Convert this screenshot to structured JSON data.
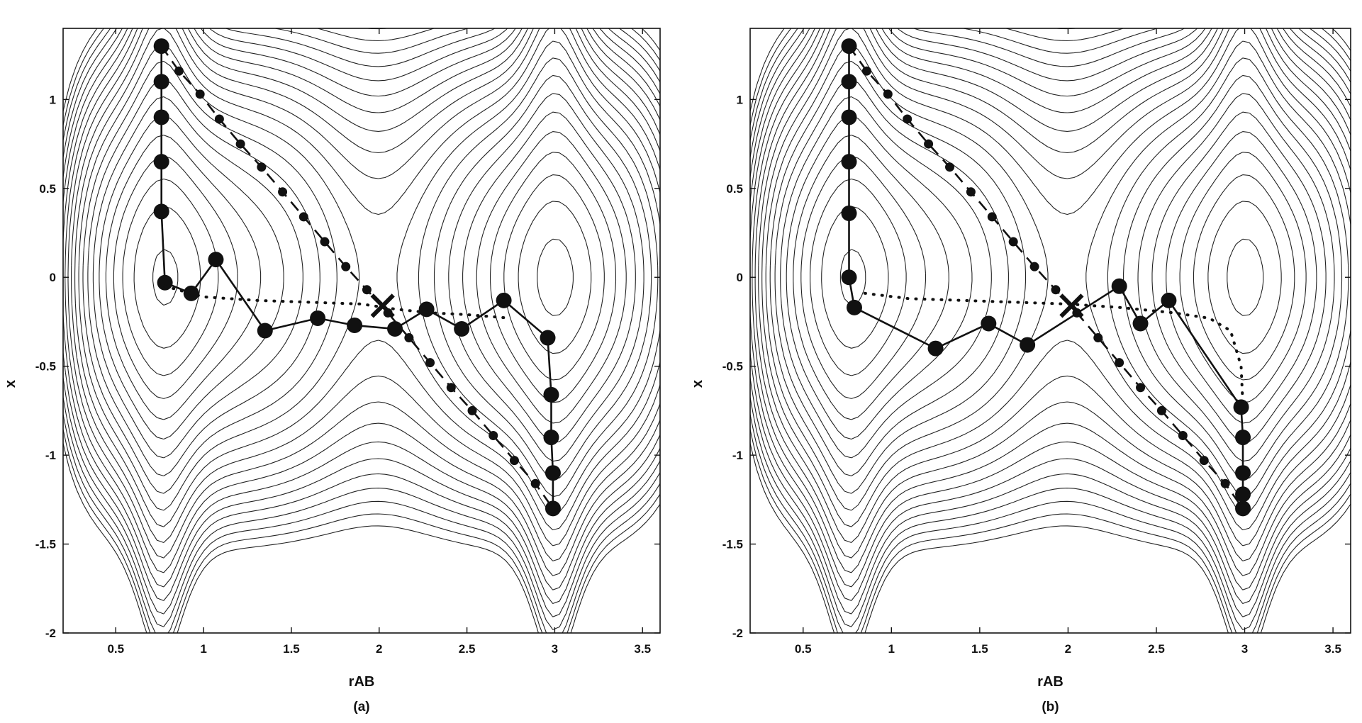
{
  "chart_data": [
    {
      "type": "line",
      "panel_label": "(a)",
      "xlabel": "rAB",
      "ylabel": "x",
      "xlim": [
        0.2,
        3.6
      ],
      "ylim": [
        -2,
        1.4
      ],
      "xticks": [
        0.5,
        1,
        1.5,
        2,
        2.5,
        3,
        3.5
      ],
      "xtick_labels": [
        "0.5",
        "1",
        "1.5",
        "2",
        "2.5",
        "3",
        "3.5"
      ],
      "yticks": [
        1,
        0.5,
        0,
        -0.5,
        -1,
        -1.5,
        -2
      ],
      "ytick_labels": [
        "1",
        "0.5",
        "0",
        "-0.5",
        "-1",
        "-1.5",
        "-2"
      ],
      "grid": false,
      "background": "contour plot of potential energy surface",
      "series": [
        {
          "style": "solid-large-markers",
          "x": [
            0.76,
            0.76,
            0.76,
            0.76,
            0.76,
            0.78,
            0.93,
            1.07,
            1.35,
            1.65,
            1.86,
            2.09,
            2.27,
            2.47,
            2.71,
            2.96,
            2.98,
            2.98,
            2.99,
            2.99
          ],
          "y": [
            1.3,
            1.1,
            0.9,
            0.65,
            0.37,
            -0.03,
            -0.09,
            0.1,
            -0.3,
            -0.23,
            -0.27,
            -0.29,
            -0.18,
            -0.29,
            -0.13,
            -0.34,
            -0.66,
            -0.9,
            -1.1,
            -1.3
          ]
        },
        {
          "style": "dashed-small-markers",
          "x": [
            0.76,
            0.86,
            0.98,
            1.09,
            1.21,
            1.33,
            1.45,
            1.57,
            1.69,
            1.81,
            1.93,
            2.05,
            2.17,
            2.29,
            2.41,
            2.53,
            2.65,
            2.77,
            2.89,
            2.99
          ],
          "y": [
            1.3,
            1.16,
            1.03,
            0.89,
            0.75,
            0.62,
            0.48,
            0.34,
            0.2,
            0.06,
            -0.07,
            -0.2,
            -0.34,
            -0.48,
            -0.62,
            -0.75,
            -0.89,
            -1.03,
            -1.16,
            -1.3
          ]
        },
        {
          "style": "dotted",
          "x": [
            0.78,
            1.0,
            1.3,
            1.6,
            1.9,
            2.1,
            2.3,
            2.5,
            2.75
          ],
          "y": [
            -0.05,
            -0.11,
            -0.13,
            -0.14,
            -0.15,
            -0.18,
            -0.2,
            -0.21,
            -0.23
          ]
        }
      ],
      "saddle_point": {
        "x": 2.02,
        "y": -0.16,
        "marker": "X"
      }
    },
    {
      "type": "line",
      "panel_label": "(b)",
      "xlabel": "rAB",
      "ylabel": "x",
      "xlim": [
        0.2,
        3.6
      ],
      "ylim": [
        -2,
        1.4
      ],
      "xticks": [
        0.5,
        1,
        1.5,
        2,
        2.5,
        3,
        3.5
      ],
      "xtick_labels": [
        "0.5",
        "1",
        "1.5",
        "2",
        "2.5",
        "3",
        "3.5"
      ],
      "yticks": [
        1,
        0.5,
        0,
        -0.5,
        -1,
        -1.5,
        -2
      ],
      "ytick_labels": [
        "1",
        "0.5",
        "0",
        "-0.5",
        "-1",
        "-1.5",
        "-2"
      ],
      "grid": false,
      "background": "contour plot of potential energy surface",
      "series": [
        {
          "style": "solid-large-markers",
          "x": [
            0.76,
            0.76,
            0.76,
            0.76,
            0.76,
            0.76,
            0.79,
            1.25,
            1.55,
            1.77,
            2.29,
            2.41,
            2.57,
            2.98,
            2.99,
            2.99,
            2.99,
            2.99
          ],
          "y": [
            1.3,
            1.1,
            0.9,
            0.65,
            0.36,
            0.0,
            -0.17,
            -0.4,
            -0.26,
            -0.38,
            -0.05,
            -0.26,
            -0.13,
            -0.73,
            -0.9,
            -1.1,
            -1.22,
            -1.3
          ]
        },
        {
          "style": "dashed-small-markers",
          "x": [
            0.76,
            0.86,
            0.98,
            1.09,
            1.21,
            1.33,
            1.45,
            1.57,
            1.69,
            1.81,
            1.93,
            2.05,
            2.17,
            2.29,
            2.41,
            2.53,
            2.65,
            2.77,
            2.89,
            2.99
          ],
          "y": [
            1.3,
            1.16,
            1.03,
            0.89,
            0.75,
            0.62,
            0.48,
            0.34,
            0.2,
            0.06,
            -0.07,
            -0.2,
            -0.34,
            -0.48,
            -0.62,
            -0.75,
            -0.89,
            -1.03,
            -1.16,
            -1.3
          ]
        },
        {
          "style": "dotted",
          "x": [
            0.85,
            1.1,
            1.4,
            1.7,
            2.0,
            2.3,
            2.6,
            2.8,
            2.92,
            2.98,
            2.99
          ],
          "y": [
            -0.09,
            -0.12,
            -0.13,
            -0.14,
            -0.15,
            -0.17,
            -0.2,
            -0.23,
            -0.3,
            -0.5,
            -0.72
          ]
        }
      ],
      "saddle_point": {
        "x": 2.02,
        "y": -0.16,
        "marker": "X"
      }
    }
  ]
}
